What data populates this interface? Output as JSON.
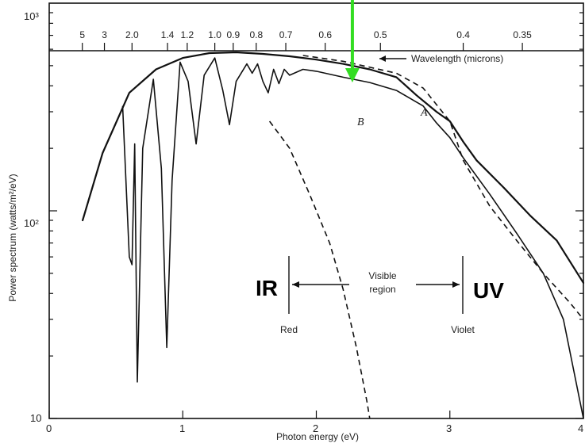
{
  "chart_data": {
    "type": "line",
    "x_axis": {
      "label": "Photon energy (eV)",
      "range": [
        0,
        4
      ],
      "ticks": [
        0,
        1,
        2,
        3,
        4
      ],
      "tick_labels": [
        "0",
        "1",
        "2",
        "3",
        "4"
      ]
    },
    "y_axis": {
      "label": "Power spectrum (watts/m²/eV)",
      "scale": "log",
      "range": [
        10,
        1000
      ],
      "ticks": [
        10,
        100,
        1000
      ],
      "tick_labels": [
        "10",
        "10²",
        "10³"
      ]
    },
    "top_axis": {
      "label": "Wavelength (microns)",
      "ticks": [
        {
          "label": "5",
          "wavelength": 5
        },
        {
          "label": "3",
          "wavelength": 3
        },
        {
          "label": "2.0",
          "wavelength": 2.0
        },
        {
          "label": "1.4",
          "wavelength": 1.4
        },
        {
          "label": "1.2",
          "wavelength": 1.2
        },
        {
          "label": "1.0",
          "wavelength": 1.0
        },
        {
          "label": "0.9",
          "wavelength": 0.9
        },
        {
          "label": "0.8",
          "wavelength": 0.8
        },
        {
          "label": "0.7",
          "wavelength": 0.7
        },
        {
          "label": "0.6",
          "wavelength": 0.6
        },
        {
          "label": "0.5",
          "wavelength": 0.5
        },
        {
          "label": "0.4",
          "wavelength": 0.4
        },
        {
          "label": "0.35",
          "wavelength": 0.35
        }
      ]
    },
    "series": [
      {
        "name": "A",
        "style": "solid",
        "points": [
          [
            0.25,
            90
          ],
          [
            0.4,
            190
          ],
          [
            0.6,
            370
          ],
          [
            0.8,
            480
          ],
          [
            1.0,
            545
          ],
          [
            1.2,
            575
          ],
          [
            1.4,
            580
          ],
          [
            1.6,
            570
          ],
          [
            1.8,
            555
          ],
          [
            2.0,
            535
          ],
          [
            2.2,
            510
          ],
          [
            2.4,
            480
          ],
          [
            2.6,
            440
          ],
          [
            2.75,
            360
          ],
          [
            2.9,
            300
          ],
          [
            3.0,
            270
          ],
          [
            3.1,
            215
          ],
          [
            3.2,
            175
          ],
          [
            3.4,
            130
          ],
          [
            3.6,
            95
          ],
          [
            3.8,
            72
          ],
          [
            4.0,
            45
          ]
        ]
      },
      {
        "name": "B",
        "style": "solid",
        "points": [
          [
            0.55,
            320
          ],
          [
            0.6,
            60
          ],
          [
            0.62,
            55
          ],
          [
            0.64,
            210
          ],
          [
            0.66,
            15
          ],
          [
            0.7,
            200
          ],
          [
            0.78,
            430
          ],
          [
            0.84,
            160
          ],
          [
            0.88,
            22
          ],
          [
            0.92,
            140
          ],
          [
            0.98,
            520
          ],
          [
            1.04,
            420
          ],
          [
            1.1,
            210
          ],
          [
            1.16,
            450
          ],
          [
            1.24,
            545
          ],
          [
            1.3,
            380
          ],
          [
            1.35,
            260
          ],
          [
            1.4,
            420
          ],
          [
            1.48,
            510
          ],
          [
            1.52,
            460
          ],
          [
            1.56,
            510
          ],
          [
            1.6,
            420
          ],
          [
            1.64,
            370
          ],
          [
            1.68,
            480
          ],
          [
            1.72,
            410
          ],
          [
            1.76,
            480
          ],
          [
            1.8,
            450
          ],
          [
            1.9,
            480
          ],
          [
            2.0,
            470
          ],
          [
            2.2,
            440
          ],
          [
            2.4,
            415
          ],
          [
            2.6,
            380
          ],
          [
            2.8,
            320
          ],
          [
            2.9,
            265
          ],
          [
            3.0,
            225
          ],
          [
            3.1,
            180
          ],
          [
            3.3,
            120
          ],
          [
            3.5,
            78
          ],
          [
            3.7,
            50
          ],
          [
            3.85,
            30
          ],
          [
            4.0,
            10
          ]
        ]
      },
      {
        "name": "",
        "style": "dashed",
        "points": [
          [
            1.9,
            560
          ],
          [
            2.2,
            525
          ],
          [
            2.6,
            460
          ],
          [
            2.8,
            390
          ],
          [
            3.0,
            270
          ],
          [
            3.1,
            175
          ],
          [
            3.3,
            105
          ],
          [
            3.5,
            72
          ],
          [
            3.7,
            50
          ],
          [
            3.9,
            36
          ],
          [
            4.0,
            30
          ]
        ]
      },
      {
        "name": "",
        "style": "dashed",
        "points": [
          [
            1.65,
            270
          ],
          [
            1.8,
            200
          ],
          [
            1.95,
            120
          ],
          [
            2.1,
            70
          ],
          [
            2.2,
            42
          ],
          [
            2.3,
            22
          ],
          [
            2.38,
            12
          ],
          [
            2.4,
            10
          ]
        ]
      }
    ],
    "annotations": {
      "curve_a_label": "A",
      "curve_b_label": "B",
      "ir": "IR",
      "uv": "UV",
      "visible_line1": "Visible",
      "visible_line2": "region",
      "red": "Red",
      "violet": "Violet",
      "visible_range_ev": [
        1.8,
        3.1
      ],
      "arrow_color": "#33dd22",
      "arrow_x_ev": 2.27
    }
  }
}
